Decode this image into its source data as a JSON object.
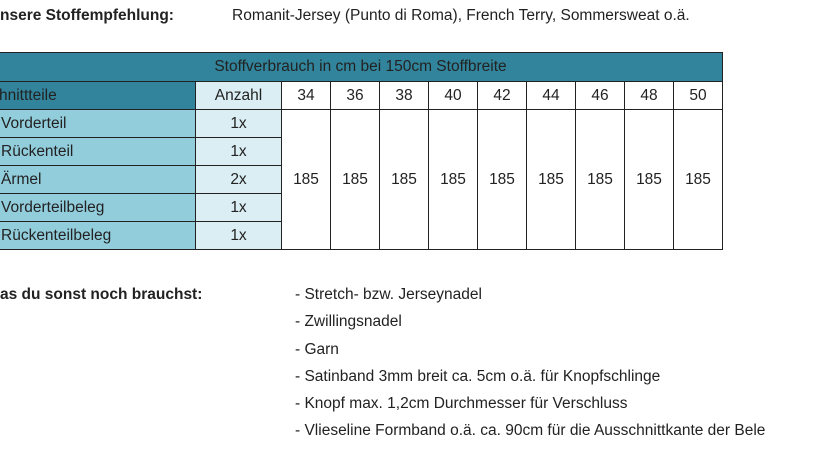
{
  "recommendation": {
    "label": "nsere Stoffempfehlung:",
    "value": "Romanit-Jersey (Punto di Roma), French Terry, Sommersweat o.ä."
  },
  "table": {
    "title": "Stoffverbrauch in cm bei 150cm Stoffbreite",
    "col_parts": "hnittteile",
    "col_count": "Anzahl",
    "sizes": [
      "34",
      "36",
      "38",
      "40",
      "42",
      "44",
      "46",
      "48",
      "50"
    ],
    "rows": [
      {
        "part": "Vorderteil",
        "count": "1x"
      },
      {
        "part": "Rückenteil",
        "count": "1x"
      },
      {
        "part": "Ärmel",
        "count": "2x"
      },
      {
        "part": "Vorderteilbeleg",
        "count": "1x"
      },
      {
        "part": "Rückenteilbeleg",
        "count": "1x"
      }
    ],
    "consumption": [
      "185",
      "185",
      "185",
      "185",
      "185",
      "185",
      "185",
      "185",
      "185"
    ],
    "colors": {
      "header": "#31849B",
      "parts": "#92CDDC",
      "count": "#DAEEF3"
    }
  },
  "supplies": {
    "label": "as du sonst noch brauchst:",
    "items": [
      "- Stretch- bzw. Jerseynadel",
      "- Zwillingsnadel",
      "- Garn",
      "- Satinband 3mm breit ca. 5cm o.ä. für Knopfschlinge",
      "- Knopf max. 1,2cm Durchmesser für Verschluss",
      "- Vlieseline Formband o.ä. ca. 90cm für die Ausschnittkante der Bele"
    ]
  }
}
